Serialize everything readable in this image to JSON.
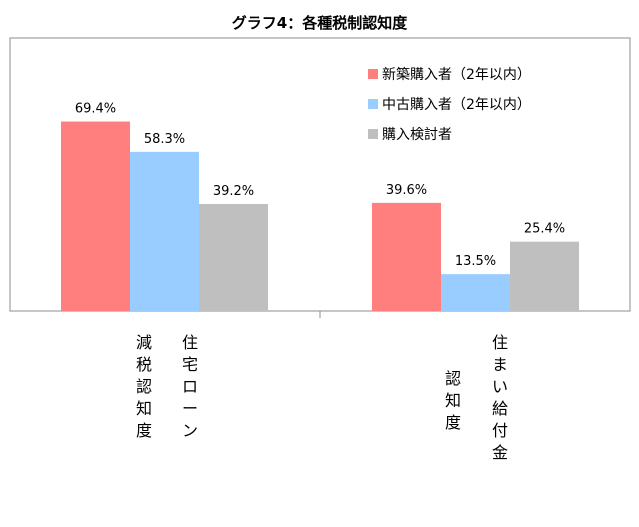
{
  "chart_data": {
    "type": "bar",
    "title": "グラフ4：各種税制認知度",
    "categories": [
      [
        "減税認知度",
        "住宅ローン"
      ],
      [
        "認知度",
        "住まい給付金"
      ]
    ],
    "series": [
      {
        "name": "新築購入者（2年以内）",
        "color": "#ff7f7f",
        "values": [
          69.4,
          39.6
        ]
      },
      {
        "name": "中古購入者（2年以内）",
        "color": "#99ccff",
        "values": [
          58.3,
          13.5
        ]
      },
      {
        "name": "購入検討者",
        "color": "#bfbfbf",
        "values": [
          39.2,
          25.4
        ]
      }
    ],
    "value_labels": [
      [
        "69.4%",
        "39.6%"
      ],
      [
        "58.3%",
        "13.5%"
      ],
      [
        "39.2%",
        "25.4%"
      ]
    ],
    "ylim": [
      0,
      100
    ],
    "grid": false,
    "legend_position": "top-right"
  }
}
